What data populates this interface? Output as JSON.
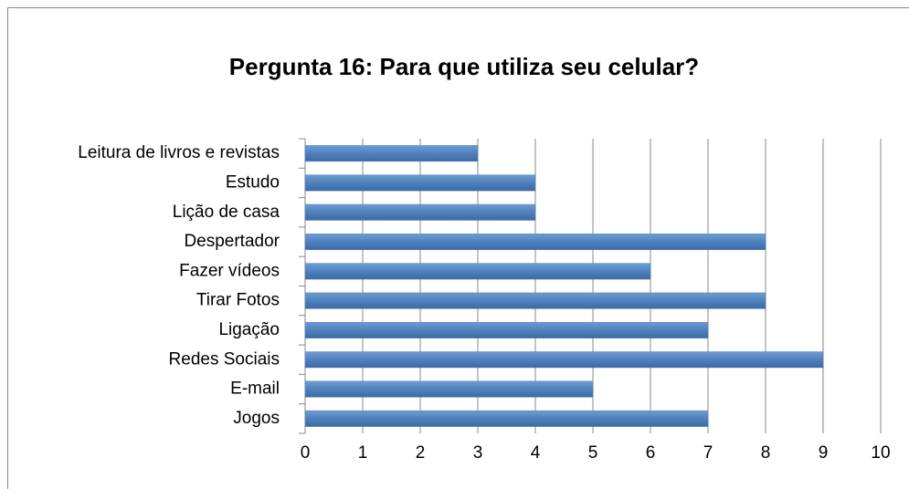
{
  "chart_data": {
    "type": "hbar",
    "title": "Pergunta 16: Para que utiliza seu celular?",
    "categories": [
      "Leitura de livros e revistas",
      "Estudo",
      "Lição de casa",
      "Despertador",
      "Fazer vídeos",
      "Tirar Fotos",
      "Ligação",
      "Redes Sociais",
      "E-mail",
      "Jogos"
    ],
    "values": [
      3,
      4,
      4,
      8,
      6,
      8,
      7,
      9,
      5,
      7
    ],
    "color": "#4f81bd",
    "xlim": [
      0,
      10
    ],
    "xticks": [
      0,
      1,
      2,
      3,
      4,
      5,
      6,
      7,
      8,
      9,
      10
    ],
    "grid": true
  }
}
